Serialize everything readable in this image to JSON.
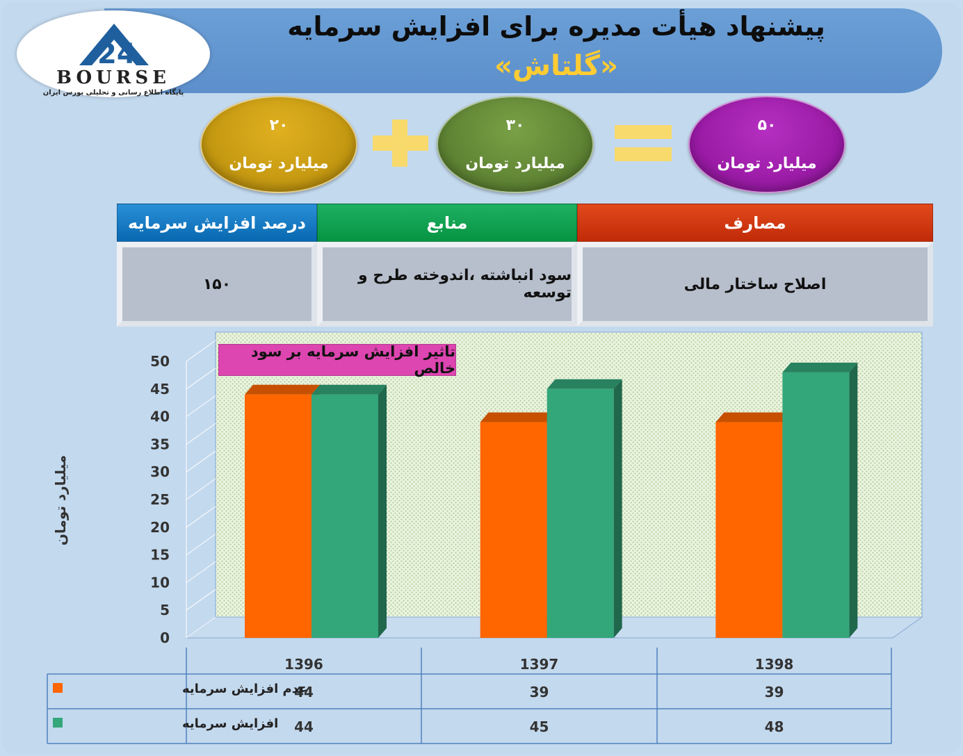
{
  "header": {
    "title": "پیشنهاد هیأت مدیره برای افزایش سرمایه",
    "subtitle": "«گلتاش»"
  },
  "logo": {
    "word": "BOURSE",
    "tagline": "پایگاه اطلاع رسانی و تحلیلی بورس ایران"
  },
  "equation": {
    "a": {
      "value": "۲۰",
      "unit": "میلیارد تومان",
      "color": "#c99b10"
    },
    "b": {
      "value": "۳۰",
      "unit": "میلیارد تومان",
      "color": "#5f8a35"
    },
    "total": {
      "value": "۵۰",
      "unit": "میلیارد تومان",
      "color": "#9c16aa"
    }
  },
  "table": {
    "headers": {
      "percent": "درصد افزایش سرمایه",
      "sources": "منابع",
      "uses": "مصارف"
    },
    "values": {
      "percent": "۱۵۰",
      "sources": "سود انباشته ،اندوخته طرح و توسعه",
      "uses": "اصلاح ساختار مالی"
    }
  },
  "chart_data": {
    "type": "bar",
    "title": "تاثیر افزایش سرمایه بر سود خالص",
    "ylabel": "میلیارد تومان",
    "categories": [
      "1396",
      "1397",
      "1398"
    ],
    "series": [
      {
        "name": "عدم افزایش سرمایه",
        "values": [
          44,
          39,
          39
        ],
        "color": "#ff6600"
      },
      {
        "name": "افزایش سرمایه",
        "values": [
          44,
          45,
          48
        ],
        "color": "#33a67a"
      }
    ],
    "ylim": [
      0,
      50
    ],
    "yticks": [
      0,
      5,
      10,
      15,
      20,
      25,
      30,
      35,
      40,
      45,
      50
    ],
    "grid": true,
    "legend": "data-table"
  }
}
